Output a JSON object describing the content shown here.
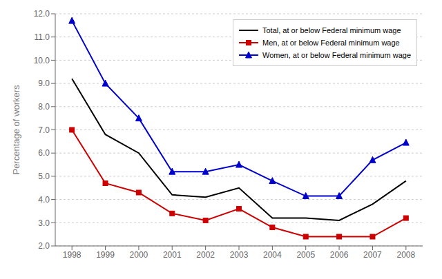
{
  "chart_data": {
    "type": "line",
    "x": [
      1998,
      1999,
      2000,
      2001,
      2002,
      2003,
      2004,
      2005,
      2006,
      2007,
      2008
    ],
    "series": [
      {
        "name": "Total, at or below Federal minimum wage",
        "color": "#000000",
        "marker": "none",
        "values": [
          9.2,
          6.8,
          6.0,
          4.2,
          4.1,
          4.5,
          3.2,
          3.2,
          3.1,
          3.8,
          4.8
        ]
      },
      {
        "name": "Men, at or below Federal minimum wage",
        "color": "#cc0000",
        "marker": "square",
        "values": [
          7.0,
          4.7,
          4.3,
          3.4,
          3.1,
          3.6,
          2.8,
          2.4,
          2.4,
          2.4,
          3.2
        ]
      },
      {
        "name": "Women, at or below Federal minimum wage",
        "color": "#0000cc",
        "marker": "triangle",
        "values": [
          11.7,
          9.0,
          7.5,
          5.2,
          5.2,
          5.5,
          4.8,
          4.15,
          4.15,
          5.7,
          6.45
        ]
      }
    ],
    "xlim": [
      1997.5,
      2008.5
    ],
    "xticks": [
      1998,
      1999,
      2000,
      2001,
      2002,
      2003,
      2004,
      2005,
      2006,
      2007,
      2008
    ],
    "ylim": [
      2.0,
      12.0
    ],
    "yticks": [
      {
        "value": 2.0,
        "label": "2.0"
      },
      {
        "value": 3.0,
        "label": "3.0"
      },
      {
        "value": 4.0,
        "label": "4.0"
      },
      {
        "value": 5.0,
        "label": "5.0"
      },
      {
        "value": 6.0,
        "label": "6.0"
      },
      {
        "value": 7.0,
        "label": "7.0"
      },
      {
        "value": 8.0,
        "label": "8.0"
      },
      {
        "value": 9.0,
        "label": "9.0"
      },
      {
        "value": 10.0,
        "label": "10.0"
      },
      {
        "value": 11.0,
        "label": "11.0"
      },
      {
        "value": 12.0,
        "label": "12.0"
      }
    ],
    "ylabel": "Percentage of workers",
    "grid": true,
    "legend": "upper right"
  }
}
